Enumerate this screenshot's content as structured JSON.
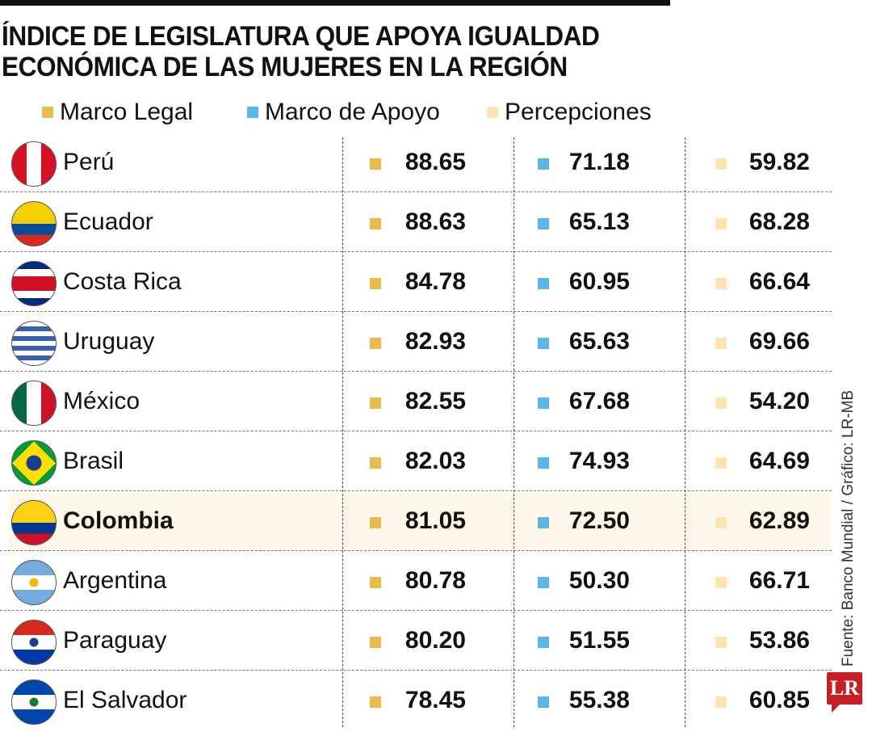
{
  "chart_data": {
    "type": "table",
    "title": [
      "ÍNDICE DE LEGISLATURA QUE APOYA IGUALDAD",
      "ECONÓMICA DE LAS MUJERES EN LA REGIÓN"
    ],
    "series": [
      {
        "name": "Marco Legal",
        "color": "#e8bb4f"
      },
      {
        "name": "Marco de Apoyo",
        "color": "#5bb6e8"
      },
      {
        "name": "Percepciones",
        "color": "#fde5b3"
      }
    ],
    "rows": [
      {
        "country": "Perú",
        "values": [
          "88.65",
          "71.18",
          "59.82"
        ]
      },
      {
        "country": "Ecuador",
        "values": [
          "88.63",
          "65.13",
          "68.28"
        ]
      },
      {
        "country": "Costa Rica",
        "values": [
          "84.78",
          "60.95",
          "66.64"
        ]
      },
      {
        "country": "Uruguay",
        "values": [
          "82.93",
          "65.63",
          "69.66"
        ]
      },
      {
        "country": "México",
        "values": [
          "82.55",
          "67.68",
          "54.20"
        ]
      },
      {
        "country": "Brasil",
        "values": [
          "82.03",
          "74.93",
          "64.69"
        ]
      },
      {
        "country": "Colombia",
        "values": [
          "81.05",
          "72.50",
          "62.89"
        ],
        "highlight": true
      },
      {
        "country": "Argentina",
        "values": [
          "80.78",
          "50.30",
          "66.71"
        ]
      },
      {
        "country": "Paraguay",
        "values": [
          "80.20",
          "51.55",
          "53.86"
        ]
      },
      {
        "country": "El Salvador",
        "values": [
          "78.45",
          "55.38",
          "60.85"
        ]
      }
    ]
  },
  "source": "Fuente: Banco Mundial / Gráfico: LR-MB",
  "logo": "LR"
}
